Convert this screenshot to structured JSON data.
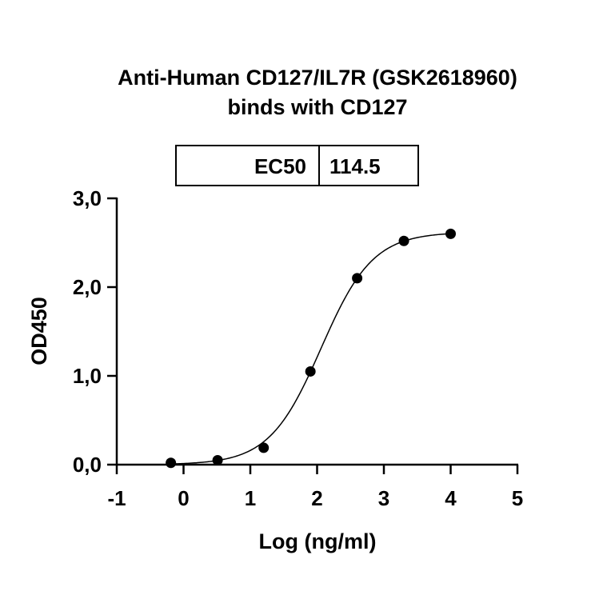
{
  "chart_data": {
    "type": "scatter",
    "title_lines": [
      "Anti-Human CD127/IL7R (GSK2618960)",
      "binds with CD127"
    ],
    "xlabel": "Log (ng/ml)",
    "ylabel": "OD450",
    "xlim": [
      -1,
      5
    ],
    "ylim": [
      0,
      3
    ],
    "x_ticks": [
      "-1",
      "0",
      "1",
      "2",
      "3",
      "4",
      "5"
    ],
    "y_ticks": [
      "0,0",
      "1,0",
      "2,0",
      "3,0"
    ],
    "grid": false,
    "points": {
      "x": [
        -0.19,
        0.51,
        1.2,
        1.9,
        2.6,
        3.3,
        4.0
      ],
      "y": [
        0.02,
        0.05,
        0.19,
        1.05,
        2.1,
        2.52,
        2.6
      ]
    },
    "fit_curve": {
      "model": "4PL",
      "bottom": 0.0,
      "top": 2.62,
      "hill": 1.12,
      "ec50": 114.5
    },
    "ec50_table": {
      "label": "EC50",
      "value": "114.5"
    },
    "colors": {
      "points": "#000000",
      "line": "#000000"
    }
  }
}
